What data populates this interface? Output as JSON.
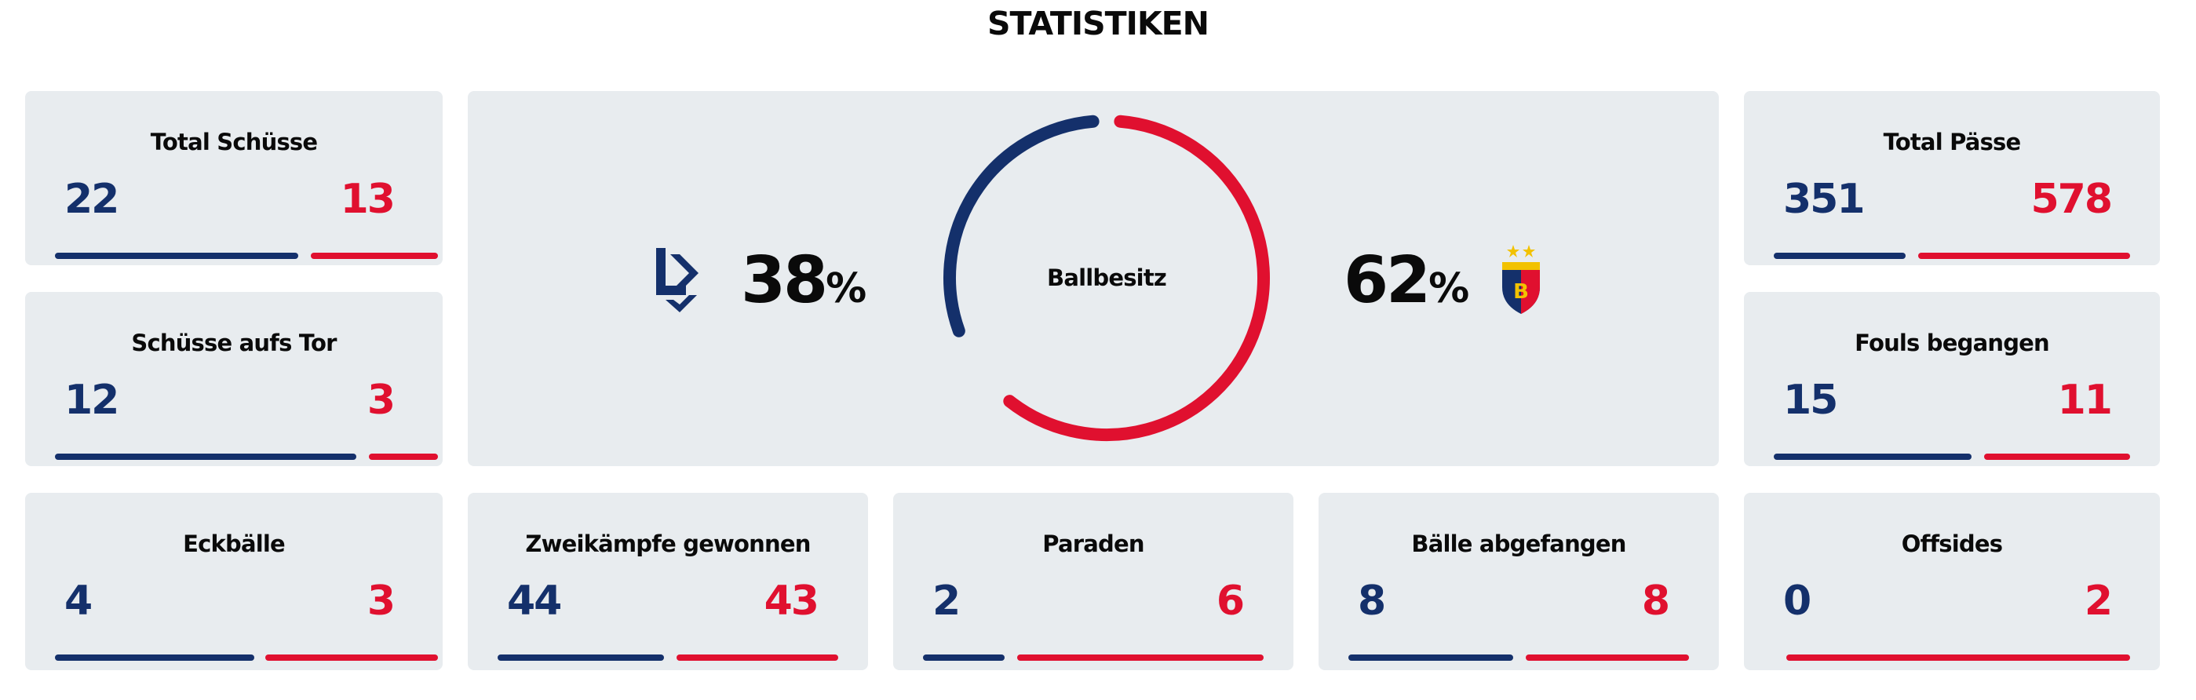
{
  "title": "STATISTIKEN",
  "colors": {
    "home": "#14306b",
    "away": "#e0102f",
    "card_bg": "#e8ecef"
  },
  "possession": {
    "label": "Ballbesitz",
    "home_value": "38",
    "away_value": "62",
    "percent_sign": "%",
    "home_fraction": 0.38,
    "away_fraction": 0.62,
    "home_logo": "lausanne-sport-logo",
    "away_logo": "fc-basel-logo"
  },
  "stats": {
    "total_schuesse": {
      "label": "Total Schüsse",
      "home": "22",
      "away": "13"
    },
    "schuesse_aufs_tor": {
      "label": "Schüsse aufs Tor",
      "home": "12",
      "away": "3"
    },
    "eckbaelle": {
      "label": "Eckbälle",
      "home": "4",
      "away": "3"
    },
    "zweikaempfe": {
      "label": "Zweikämpfe gewonnen",
      "home": "44",
      "away": "43"
    },
    "paraden": {
      "label": "Paraden",
      "home": "2",
      "away": "6"
    },
    "baelle_abgefangen": {
      "label": "Bälle abgefangen",
      "home": "8",
      "away": "8"
    },
    "total_paesse": {
      "label": "Total Pässe",
      "home": "351",
      "away": "578"
    },
    "fouls_begangen": {
      "label": "Fouls begangen",
      "home": "15",
      "away": "11"
    },
    "offsides": {
      "label": "Offsides",
      "home": "0",
      "away": "2"
    }
  }
}
